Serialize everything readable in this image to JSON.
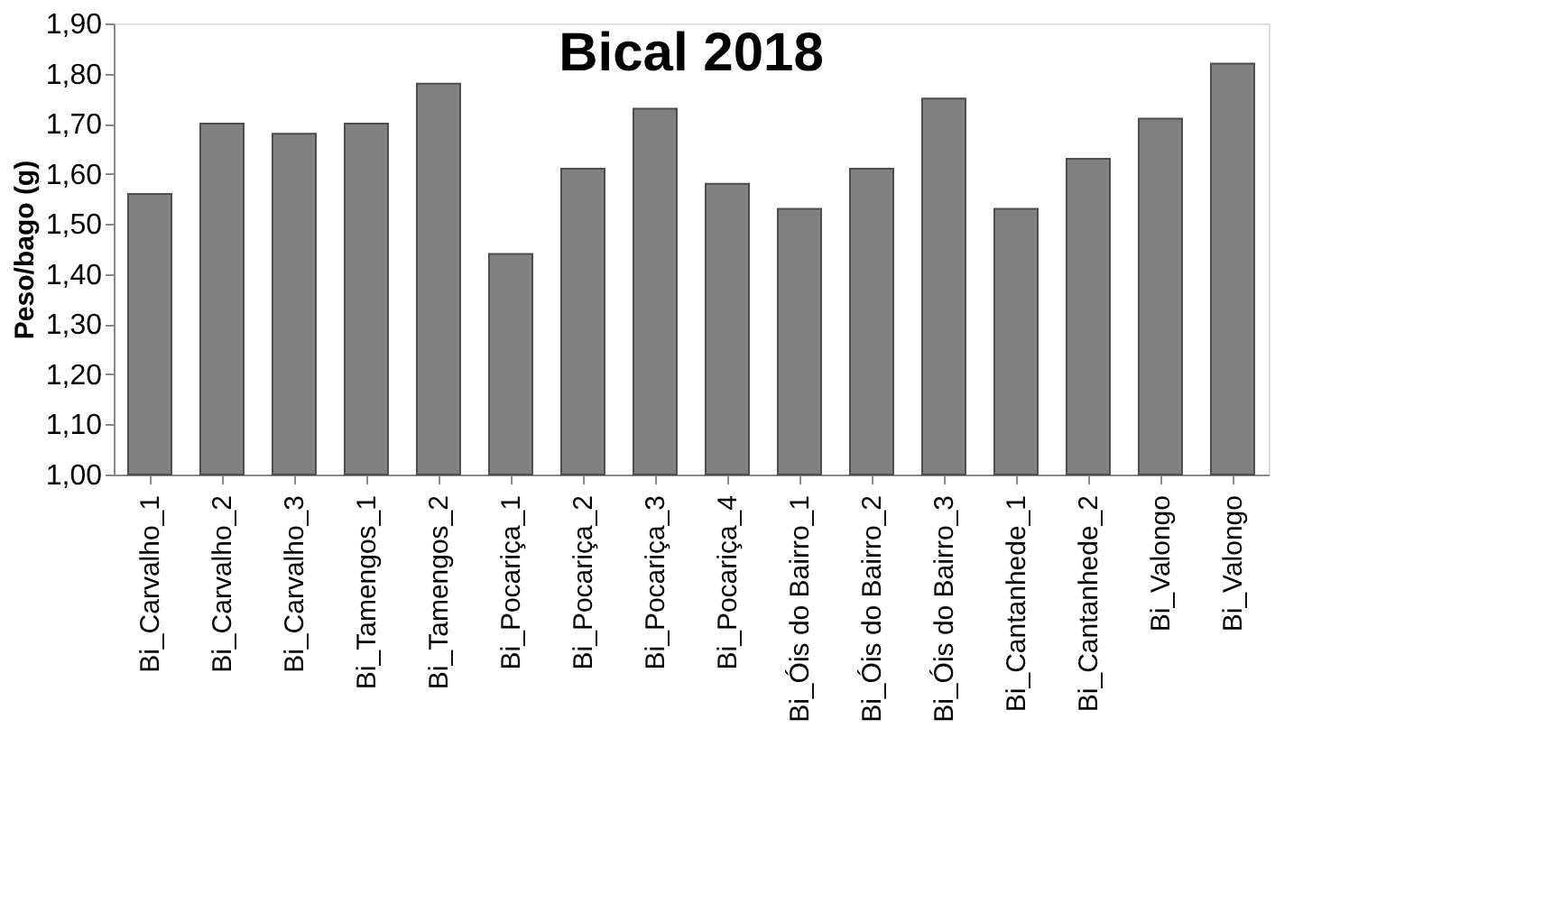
{
  "chart_data": {
    "type": "bar",
    "title": "Bical 2018",
    "ylabel": "Peso/bago (g)",
    "categories": [
      "Bi_Carvalho_1",
      "Bi_Carvalho_2",
      "Bi_Carvalho_3",
      "Bi_Tamengos_1",
      "Bi_Tamengos_2",
      "Bi_Pocariça_1",
      "Bi_Pocariça_2",
      "Bi_Pocariça_3",
      "Bi_Pocariça_4",
      "Bi_Óis do Bairro_1",
      "Bi_Óis do Bairro_2",
      "Bi_Óis do Bairro_3",
      "Bi_Cantanhede_1",
      "Bi_Cantanhede_2",
      "Bi_Valongo",
      "Bi_Valongo"
    ],
    "values": [
      1.56,
      1.7,
      1.68,
      1.7,
      1.78,
      1.44,
      1.61,
      1.73,
      1.58,
      1.53,
      1.61,
      1.75,
      1.53,
      1.63,
      1.71,
      1.82
    ],
    "color": "#808080",
    "ylim": [
      1.0,
      1.9
    ],
    "yticks": [
      {
        "value": 1.0,
        "label": "1,00"
      },
      {
        "value": 1.1,
        "label": "1,10"
      },
      {
        "value": 1.2,
        "label": "1,20"
      },
      {
        "value": 1.3,
        "label": "1,30"
      },
      {
        "value": 1.4,
        "label": "1,40"
      },
      {
        "value": 1.5,
        "label": "1,50"
      },
      {
        "value": 1.6,
        "label": "1,60"
      },
      {
        "value": 1.7,
        "label": "1,70"
      },
      {
        "value": 1.8,
        "label": "1,80"
      },
      {
        "value": 1.9,
        "label": "1,90"
      }
    ],
    "grid": false,
    "legend": false
  }
}
